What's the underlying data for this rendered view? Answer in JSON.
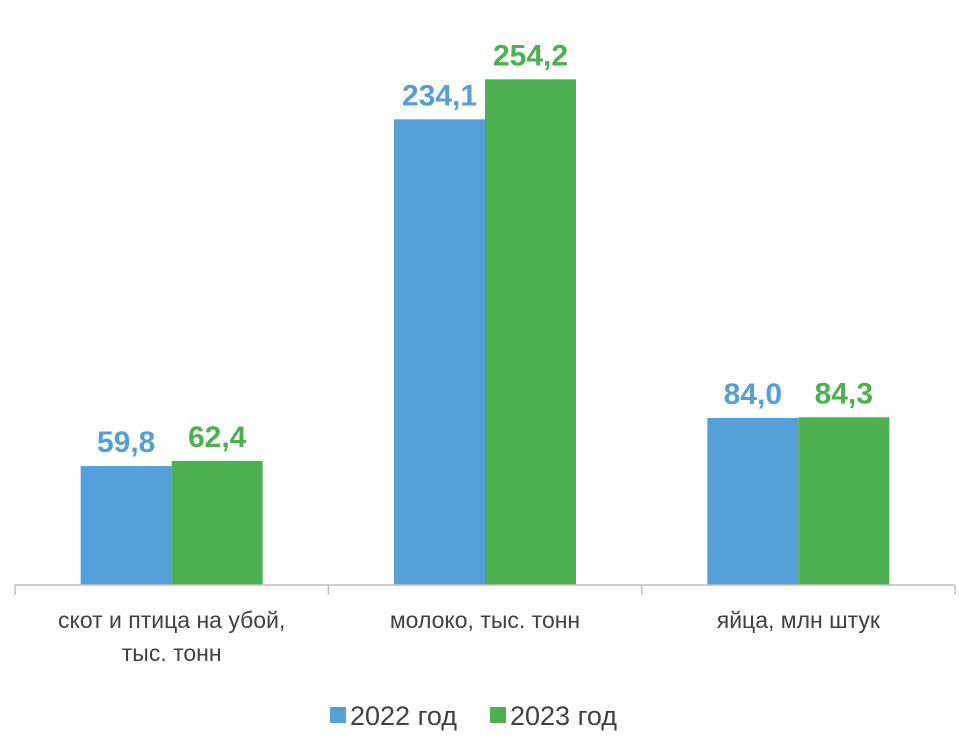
{
  "chart_data": {
    "type": "bar",
    "categories": [
      [
        "скот и птица на убой,",
        "тыс. тонн"
      ],
      [
        "молоко, тыс. тонн"
      ],
      [
        "яйца, млн штук"
      ]
    ],
    "series": [
      {
        "name": "2022 год",
        "color": "#559FD8",
        "values": [
          59.8,
          234.1,
          84.0
        ],
        "labels": [
          "59,8",
          "234,1",
          "84,0"
        ]
      },
      {
        "name": "2023 год",
        "color": "#4CAF50",
        "values": [
          62.4,
          254.2,
          84.3
        ],
        "labels": [
          "62,4",
          "254,2",
          "84,3"
        ]
      }
    ],
    "ylim": [
      0,
      279
    ],
    "grid": false,
    "legend_position": "bottom"
  }
}
